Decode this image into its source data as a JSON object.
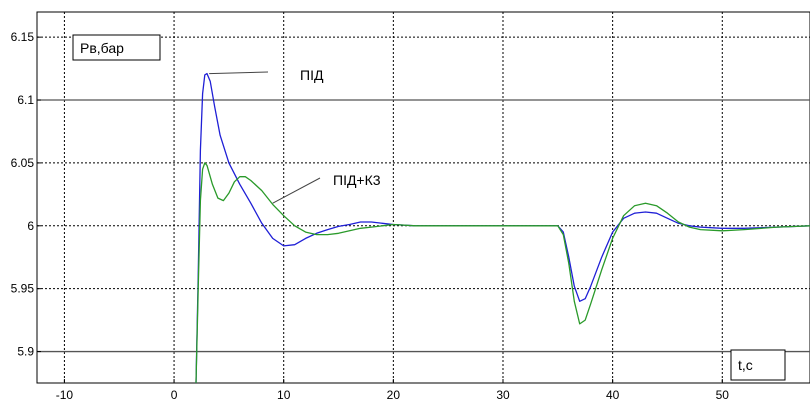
{
  "chart_data": {
    "type": "line",
    "xlim": [
      -12.5,
      58
    ],
    "ylim": [
      5.875,
      6.17
    ],
    "x_ticks": [
      -10,
      0,
      10,
      20,
      30,
      40,
      50
    ],
    "y_ticks": [
      5.9,
      5.95,
      6,
      6.05,
      6.1,
      6.15
    ],
    "x_tick_labels": [
      "-10",
      "0",
      "10",
      "20",
      "30",
      "40",
      "50"
    ],
    "y_tick_labels": [
      "5.9",
      "5.95",
      "6",
      "6.05",
      "6.1",
      "6.15"
    ],
    "ylabel": "Рв,бар",
    "xlabel": "t,c",
    "grid": true,
    "reference_lines": [
      6.1,
      5.9
    ],
    "series": [
      {
        "name": "ПІД",
        "color": "#1f1fd6",
        "points": [
          [
            2,
            5.875
          ],
          [
            2.2,
            5.96
          ],
          [
            2.4,
            6.06
          ],
          [
            2.6,
            6.105
          ],
          [
            2.8,
            6.12
          ],
          [
            3.0,
            6.121
          ],
          [
            3.3,
            6.115
          ],
          [
            3.7,
            6.095
          ],
          [
            4.2,
            6.072
          ],
          [
            5,
            6.05
          ],
          [
            6,
            6.033
          ],
          [
            7,
            6.018
          ],
          [
            8,
            6.002
          ],
          [
            9,
            5.99
          ],
          [
            10,
            5.984
          ],
          [
            11,
            5.985
          ],
          [
            12,
            5.99
          ],
          [
            13,
            5.994
          ],
          [
            14,
            5.997
          ],
          [
            15,
            5.9995
          ],
          [
            16,
            6.001
          ],
          [
            17,
            6.003
          ],
          [
            18,
            6.003
          ],
          [
            19,
            6.002
          ],
          [
            20,
            6.001
          ],
          [
            22,
            6.0
          ],
          [
            25,
            6.0
          ],
          [
            30,
            6.0
          ],
          [
            35,
            6.0
          ],
          [
            35.5,
            5.995
          ],
          [
            36,
            5.975
          ],
          [
            36.5,
            5.952
          ],
          [
            37,
            5.94
          ],
          [
            37.5,
            5.942
          ],
          [
            38,
            5.952
          ],
          [
            39,
            5.975
          ],
          [
            40,
            5.995
          ],
          [
            41,
            6.006
          ],
          [
            42,
            6.01
          ],
          [
            43,
            6.011
          ],
          [
            44,
            6.01
          ],
          [
            45,
            6.006
          ],
          [
            46,
            6.002
          ],
          [
            47,
            6.0
          ],
          [
            48,
            5.999
          ],
          [
            50,
            5.998
          ],
          [
            52,
            5.998
          ],
          [
            55,
            5.999
          ],
          [
            58,
            6.0
          ]
        ]
      },
      {
        "name": "ПІД+К3",
        "color": "#2a9a2a",
        "points": [
          [
            2,
            5.875
          ],
          [
            2.2,
            5.95
          ],
          [
            2.4,
            6.02
          ],
          [
            2.6,
            6.045
          ],
          [
            2.8,
            6.05
          ],
          [
            3.0,
            6.048
          ],
          [
            3.5,
            6.033
          ],
          [
            4.0,
            6.022
          ],
          [
            4.5,
            6.02
          ],
          [
            5,
            6.026
          ],
          [
            5.5,
            6.035
          ],
          [
            6,
            6.039
          ],
          [
            6.5,
            6.039
          ],
          [
            7,
            6.036
          ],
          [
            8,
            6.028
          ],
          [
            9,
            6.017
          ],
          [
            10,
            6.008
          ],
          [
            11,
            6.0
          ],
          [
            12,
            5.995
          ],
          [
            13,
            5.993
          ],
          [
            14,
            5.993
          ],
          [
            15,
            5.994
          ],
          [
            16,
            5.996
          ],
          [
            17,
            5.998
          ],
          [
            18,
            5.999
          ],
          [
            19,
            6.0
          ],
          [
            20,
            6.001
          ],
          [
            22,
            6.0
          ],
          [
            25,
            6.0
          ],
          [
            30,
            6.0
          ],
          [
            35,
            6.0
          ],
          [
            35.5,
            5.993
          ],
          [
            36,
            5.97
          ],
          [
            36.5,
            5.94
          ],
          [
            37,
            5.922
          ],
          [
            37.5,
            5.925
          ],
          [
            38,
            5.938
          ],
          [
            39,
            5.965
          ],
          [
            40,
            5.99
          ],
          [
            41,
            6.008
          ],
          [
            42,
            6.016
          ],
          [
            43,
            6.018
          ],
          [
            44,
            6.016
          ],
          [
            45,
            6.01
          ],
          [
            46,
            6.003
          ],
          [
            47,
            5.999
          ],
          [
            48,
            5.997
          ],
          [
            50,
            5.996
          ],
          [
            52,
            5.997
          ],
          [
            55,
            5.999
          ],
          [
            58,
            6.0
          ]
        ]
      }
    ],
    "annotations": [
      {
        "text": "ПІД",
        "series": "ПІД",
        "pointer_to": [
          3.2,
          6.121
        ]
      },
      {
        "text": "ПІД+К3",
        "series": "ПІД+К3",
        "pointer_to": [
          9.0,
          6.018
        ]
      }
    ]
  }
}
